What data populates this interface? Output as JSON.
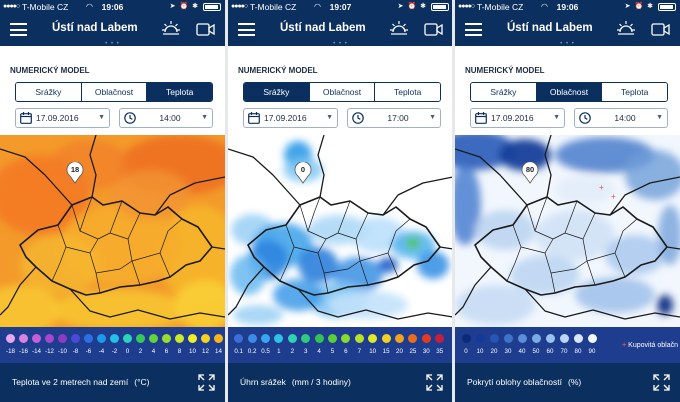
{
  "status_bar": {
    "carrier": "T-Mobile CZ"
  },
  "header": {
    "title": "Ústí nad Labem"
  },
  "section_title": "NUMERICKÝ MODEL",
  "tab_labels": [
    "Srážky",
    "Oblačnost",
    "Teplota"
  ],
  "colors": {
    "header_bg": "#0b2f5e",
    "legend_bg": "#1e3d8f",
    "tab_active": "#0b2f5e"
  },
  "screens": [
    {
      "time_status": "19:06",
      "active_tab": "Teplota",
      "date": "17.09.2016",
      "time": "14:00",
      "marker_value": "18",
      "map_style": "temperature",
      "legend": {
        "values": [
          "-18",
          "-16",
          "-14",
          "-12",
          "-10",
          "-8",
          "-6",
          "-4",
          "-2",
          "0",
          "2",
          "4",
          "6",
          "8",
          "10",
          "12",
          "14"
        ],
        "colors": [
          "#e9a6ee",
          "#da82e4",
          "#c55fd8",
          "#a846cc",
          "#8a3bc0",
          "#4b4ad8",
          "#2a6fe3",
          "#1e98e8",
          "#23bfe6",
          "#2dd2b8",
          "#37c85a",
          "#63d23b",
          "#97de2b",
          "#c9ea26",
          "#eef025",
          "#f8d21f",
          "#f7b51e"
        ]
      },
      "caption": "Teplota ve 2 metrech nad zemí",
      "unit": "(°C)"
    },
    {
      "time_status": "19:07",
      "active_tab": "Srážky",
      "date": "17.09.2016",
      "time": "17:00",
      "marker_value": "0",
      "map_style": "precipitation",
      "legend": {
        "values": [
          "0.1",
          "0.2",
          "0.5",
          "1",
          "2",
          "3",
          "4",
          "5",
          "6",
          "7",
          "10",
          "15",
          "20",
          "25",
          "30",
          "35"
        ],
        "colors": [
          "#3a6fd8",
          "#3f8ae6",
          "#35a7ee",
          "#2cc3e7",
          "#2fd3b5",
          "#2fc980",
          "#34c253",
          "#5ccf38",
          "#89d92d",
          "#b7e326",
          "#e0ea22",
          "#f3d11f",
          "#f2a21d",
          "#ee6d1c",
          "#e53a1d",
          "#c81e3d"
        ]
      },
      "caption": "Úhrn srážek",
      "unit": "(mm / 3 hodiny)"
    },
    {
      "time_status": "19:06",
      "active_tab": "Oblačnost",
      "date": "17.09.2016",
      "time": "14:00",
      "marker_value": "80",
      "map_style": "cloud",
      "legend": {
        "values": [
          "0",
          "10",
          "20",
          "30",
          "40",
          "50",
          "60",
          "70",
          "80",
          "90"
        ],
        "colors": [
          "#0a2a7a",
          "#13399b",
          "#2456b5",
          "#3d73c9",
          "#5a90d8",
          "#7aabe3",
          "#9ac2ec",
          "#bad6f3",
          "#d8e8f9",
          "#f3f8fe"
        ],
        "note_mark": "+",
        "note": "Kupovitá oblačn"
      },
      "caption": "Pokrytí oblohy oblačností",
      "unit": "(%)"
    }
  ]
}
